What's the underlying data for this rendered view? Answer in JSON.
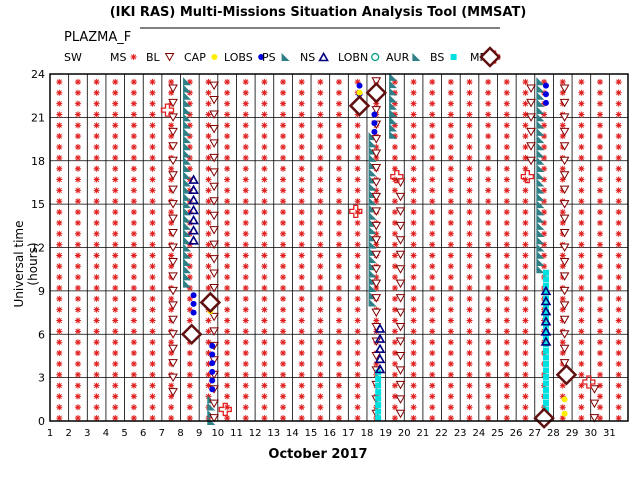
{
  "title": "(IKI RAS) Multi-Missions Situation Analysis Tool (MMSAT)",
  "subtitle": "PLAZMA_F",
  "legend": [
    {
      "label": "SW",
      "symbol": "none",
      "color": "#000000"
    },
    {
      "label": "MS",
      "symbol": "asterisk",
      "color": "#e02020"
    },
    {
      "label": "BL",
      "symbol": "triangle-down",
      "color": "#800000"
    },
    {
      "label": "CAP",
      "symbol": "dot",
      "color": "#ffee00"
    },
    {
      "label": "LOBS",
      "symbol": "dot",
      "color": "#0000e0"
    },
    {
      "label": "PS",
      "symbol": "flag",
      "color": "#2f7f86"
    },
    {
      "label": "NS",
      "symbol": "triangle-up",
      "color": "#000080"
    },
    {
      "label": "LOBN",
      "symbol": "circle",
      "color": "#00a080"
    },
    {
      "label": "AUR",
      "symbol": "flag",
      "color": "#2f7f86"
    },
    {
      "label": "BS",
      "symbol": "square",
      "color": "#00e0e0"
    },
    {
      "label": "MP",
      "symbol": "cross",
      "color": "#e02020"
    },
    {
      "label": "",
      "symbol": "diamond",
      "color": "#601010"
    }
  ],
  "chart_data": {
    "type": "scatter",
    "xlabel": "October 2017",
    "ylabel": "Universal time (hours)",
    "xlim": [
      1,
      32
    ],
    "ylim": [
      0,
      24
    ],
    "x_ticks": [
      "1",
      "2",
      "3",
      "4",
      "5",
      "6",
      "7",
      "8",
      "9",
      "10",
      "11",
      "12",
      "13",
      "14",
      "15",
      "16",
      "17",
      "18",
      "19",
      "20",
      "21",
      "22",
      "23",
      "24",
      "25",
      "26",
      "27",
      "28",
      "29",
      "30",
      "31"
    ],
    "y_ticks": [
      "0",
      "3",
      "6",
      "9",
      "12",
      "15",
      "18",
      "21",
      "24"
    ],
    "grid": true,
    "background_series": {
      "name": "MS",
      "x_start": 1.5,
      "x_end": 31.5,
      "x_step": 1,
      "y_start": 0.2,
      "y_end": 23.7,
      "y_step": 0.75
    },
    "magnetopause": [
      {
        "x": 7.3,
        "y": 21.5
      },
      {
        "x": 10.4,
        "y": 0.8
      },
      {
        "x": 17.4,
        "y": 14.5
      },
      {
        "x": 19.6,
        "y": 16.9
      },
      {
        "x": 26.6,
        "y": 16.9
      },
      {
        "x": 29.9,
        "y": 2.7
      }
    ],
    "crossings": [
      {
        "x": 8.6,
        "y": 6.0
      },
      {
        "x": 9.6,
        "y": 8.2
      },
      {
        "x": 17.6,
        "y": 21.8
      },
      {
        "x": 18.5,
        "y": 22.7
      },
      {
        "x": 27.5,
        "y": 0.2
      },
      {
        "x": 28.7,
        "y": 3.2
      }
    ],
    "boundary_layer": [
      {
        "x": 7.6,
        "y_start": 2.0,
        "y_end": 23.8
      },
      {
        "x": 9.8,
        "y_start": 0.2,
        "y_end": 23.8
      },
      {
        "x": 18.5,
        "y_start": 0.5,
        "y_end": 23.8
      },
      {
        "x": 19.8,
        "y_start": 0.5,
        "y_end": 16.5
      },
      {
        "x": 26.8,
        "y_start": 18.0,
        "y_end": 23.8
      },
      {
        "x": 28.6,
        "y_start": 4.0,
        "y_end": 23.8
      },
      {
        "x": 30.2,
        "y_start": 0.2,
        "y_end": 3.0
      }
    ],
    "plasma_sheet": [
      {
        "x": 8.35,
        "y_start": 9.5,
        "y_end": 23.8
      },
      {
        "x": 9.65,
        "y_start": 0.0,
        "y_end": 1.5
      },
      {
        "x": 18.3,
        "y_start": 8.2,
        "y_end": 19.8
      },
      {
        "x": 19.4,
        "y_start": 19.8,
        "y_end": 23.8
      },
      {
        "x": 27.3,
        "y_start": 10.5,
        "y_end": 23.8
      }
    ],
    "northern_lobe": [
      {
        "x": 8.7,
        "y_start": 12.5,
        "y_end": 17.2
      },
      {
        "x": 18.7,
        "y_start": 3.6,
        "y_end": 6.4
      },
      {
        "x": 27.6,
        "y_start": 5.5,
        "y_end": 9.4
      }
    ],
    "southern_lobe": [
      {
        "x": 8.7,
        "y_start": 7.5,
        "y_end": 9.2
      },
      {
        "x": 9.7,
        "y_start": 2.2,
        "y_end": 5.5
      },
      {
        "x": 17.6,
        "y_start": 22.0,
        "y_end": 23.6
      },
      {
        "x": 18.4,
        "y_start": 20.0,
        "y_end": 21.5
      },
      {
        "x": 27.6,
        "y_start": 22.0,
        "y_end": 23.6
      }
    ],
    "bow_shock": [
      {
        "x": 18.6,
        "y_start": 0.2,
        "y_end": 3.5
      },
      {
        "x": 27.6,
        "y_start": 0.8,
        "y_end": 10.5
      }
    ],
    "cap": [
      {
        "x": 9.6,
        "y": 7.6
      },
      {
        "x": 17.6,
        "y": 22.7
      },
      {
        "x": 28.6,
        "y": 0.5
      },
      {
        "x": 28.6,
        "y": 1.5
      }
    ]
  }
}
